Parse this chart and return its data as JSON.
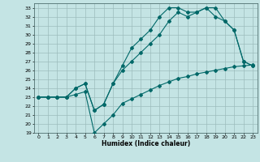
{
  "title": "",
  "xlabel": "Humidex (Indice chaleur)",
  "bg_color": "#c4e4e4",
  "grid_color": "#9cbcbc",
  "line_color": "#006868",
  "xlim": [
    -0.5,
    23.5
  ],
  "ylim": [
    19,
    33.5
  ],
  "yticks": [
    19,
    20,
    21,
    22,
    23,
    24,
    25,
    26,
    27,
    28,
    29,
    30,
    31,
    32,
    33
  ],
  "xticks": [
    0,
    1,
    2,
    3,
    4,
    5,
    6,
    7,
    8,
    9,
    10,
    11,
    12,
    13,
    14,
    15,
    16,
    17,
    18,
    19,
    20,
    21,
    22,
    23
  ],
  "line1_x": [
    0,
    1,
    2,
    3,
    4,
    5,
    6,
    7,
    8,
    9,
    10,
    11,
    12,
    13,
    14,
    15,
    16,
    17,
    18,
    19,
    20,
    21,
    22,
    23
  ],
  "line1_y": [
    23,
    23,
    23,
    23,
    24,
    24.5,
    21.5,
    22.2,
    24.5,
    26.5,
    28.5,
    29.5,
    30.5,
    32,
    33,
    33,
    32.5,
    32.5,
    33,
    33,
    31.5,
    30.5,
    27,
    26.5
  ],
  "line2_x": [
    0,
    1,
    2,
    3,
    4,
    5,
    6,
    7,
    8,
    9,
    10,
    11,
    12,
    13,
    14,
    15,
    16,
    17,
    18,
    19,
    20,
    21,
    22,
    23
  ],
  "line2_y": [
    23,
    23,
    23,
    23,
    24,
    24.5,
    21.5,
    22.2,
    24.5,
    26,
    27,
    28,
    29,
    30,
    31.5,
    32.5,
    32,
    32.5,
    33,
    32,
    31.5,
    30.5,
    27,
    26.5
  ],
  "line3_x": [
    0,
    1,
    2,
    3,
    4,
    5,
    6,
    7,
    8,
    9,
    10,
    11,
    12,
    13,
    14,
    15,
    16,
    17,
    18,
    19,
    20,
    21,
    22,
    23
  ],
  "line3_y": [
    23,
    23,
    23,
    23,
    23.3,
    23.6,
    19,
    20,
    21,
    22.3,
    22.8,
    23.3,
    23.8,
    24.3,
    24.7,
    25.1,
    25.3,
    25.6,
    25.8,
    26.0,
    26.2,
    26.4,
    26.5,
    26.6
  ]
}
